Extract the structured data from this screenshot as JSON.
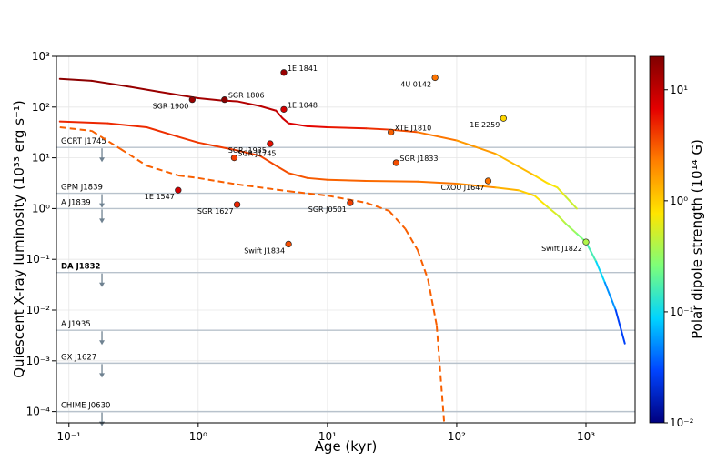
{
  "chart_data": {
    "type": "scatter",
    "xlabel": "Age (kyr)",
    "ylabel": "Quiescent X-ray luminosity (10³³ erg s⁻¹)",
    "x_scale": "log",
    "y_scale": "log",
    "xlim": [
      0.08,
      2400
    ],
    "ylim": [
      6e-05,
      1000
    ],
    "grid": true,
    "x_ticks": [
      {
        "value": 0.1,
        "label": "10⁻¹"
      },
      {
        "value": 1,
        "label": "10⁰"
      },
      {
        "value": 10,
        "label": "10¹"
      },
      {
        "value": 100,
        "label": "10²"
      },
      {
        "value": 1000,
        "label": "10³"
      }
    ],
    "y_ticks": [
      {
        "value": 0.0001,
        "label": "10⁻⁴"
      },
      {
        "value": 0.001,
        "label": "10⁻³"
      },
      {
        "value": 0.01,
        "label": "10⁻²"
      },
      {
        "value": 0.1,
        "label": "10⁻¹"
      },
      {
        "value": 1,
        "label": "10⁰"
      },
      {
        "value": 10,
        "label": "10¹"
      },
      {
        "value": 100,
        "label": "10²"
      },
      {
        "value": 1000,
        "label": "10³"
      }
    ],
    "colorbar": {
      "label": "Polar dipole strength (10¹⁴ G)",
      "scale": "log",
      "range": [
        0.01,
        20
      ],
      "ticks": [
        {
          "value": 10,
          "label": "10¹"
        },
        {
          "value": 1,
          "label": "10⁰"
        },
        {
          "value": 0.1,
          "label": "10⁻¹"
        },
        {
          "value": 0.01,
          "label": "10⁻²"
        }
      ],
      "stops": [
        "#00007f",
        "#0044ff",
        "#00d4ff",
        "#7dff7a",
        "#ffe500",
        "#ff7f00",
        "#e40000",
        "#800000"
      ]
    },
    "upper_limits": [
      {
        "name": "GCRT J1745",
        "y": 16,
        "bold": false
      },
      {
        "name": "GPM J1839",
        "y": 2,
        "bold": false
      },
      {
        "name": "A J1839",
        "y": 1,
        "bold": false
      },
      {
        "name": "DA J1832",
        "y": 0.055,
        "bold": true
      },
      {
        "name": "A J1935",
        "y": 0.004,
        "bold": false
      },
      {
        "name": "GX J1627",
        "y": 0.0009,
        "bold": false
      },
      {
        "name": "CHIME J0630",
        "y": 0.0001,
        "bold": false
      }
    ],
    "upper_limit_age": 0.18,
    "tracks": [
      {
        "dash": false,
        "points": [
          [
            0.085,
            360
          ],
          [
            0.15,
            330
          ],
          [
            0.3,
            250
          ],
          [
            0.5,
            200
          ],
          [
            1,
            150
          ],
          [
            1.5,
            135
          ],
          [
            2,
            130
          ],
          [
            3,
            105
          ],
          [
            4,
            85
          ],
          [
            4.5,
            60
          ],
          [
            5,
            48
          ],
          [
            7,
            42
          ],
          [
            10,
            40
          ],
          [
            20,
            38
          ],
          [
            30,
            36
          ],
          [
            50,
            32
          ],
          [
            100,
            22
          ],
          [
            200,
            12
          ],
          [
            400,
            4.5
          ],
          [
            500,
            3.2
          ],
          [
            600,
            2.6
          ],
          [
            700,
            1.7
          ],
          [
            850,
            1.0
          ]
        ],
        "fields": [
          18,
          17,
          16,
          15,
          14,
          13,
          12,
          11,
          10,
          9,
          8,
          7,
          6,
          5,
          4,
          3,
          2,
          1.5,
          1,
          0.8,
          0.7,
          0.55,
          0.45
        ]
      },
      {
        "dash": false,
        "points": [
          [
            0.085,
            52
          ],
          [
            0.2,
            48
          ],
          [
            0.4,
            40
          ],
          [
            0.7,
            26
          ],
          [
            1,
            20
          ],
          [
            2,
            14
          ],
          [
            3,
            11
          ],
          [
            4,
            7
          ],
          [
            5,
            5
          ],
          [
            7,
            4
          ],
          [
            10,
            3.7
          ],
          [
            20,
            3.5
          ],
          [
            50,
            3.4
          ],
          [
            100,
            3.1
          ],
          [
            200,
            2.6
          ],
          [
            300,
            2.3
          ],
          [
            400,
            1.8
          ],
          [
            500,
            1.1
          ],
          [
            600,
            0.75
          ],
          [
            700,
            0.5
          ],
          [
            850,
            0.32
          ],
          [
            1000,
            0.22
          ],
          [
            1200,
            0.09
          ],
          [
            1400,
            0.035
          ],
          [
            1700,
            0.01
          ],
          [
            2000,
            0.0022
          ]
        ],
        "fields": [
          5,
          4.8,
          4.6,
          4.4,
          4.2,
          4,
          3.8,
          3.6,
          3.4,
          3.2,
          3,
          2.8,
          2.6,
          2.4,
          1.6,
          1.1,
          0.9,
          0.65,
          0.5,
          0.4,
          0.3,
          0.22,
          0.12,
          0.07,
          0.04,
          0.02
        ]
      },
      {
        "dash": true,
        "points": [
          [
            0.085,
            40
          ],
          [
            0.15,
            34
          ],
          [
            0.25,
            15
          ],
          [
            0.4,
            7
          ],
          [
            0.7,
            4.5
          ],
          [
            1,
            4
          ],
          [
            2,
            3
          ],
          [
            5,
            2.2
          ],
          [
            10,
            1.8
          ],
          [
            20,
            1.3
          ],
          [
            30,
            0.9
          ],
          [
            40,
            0.4
          ],
          [
            50,
            0.15
          ],
          [
            60,
            0.04
          ],
          [
            70,
            0.005
          ],
          [
            80,
            6e-05
          ]
        ],
        "fields": [
          3,
          3,
          3,
          3,
          3,
          3,
          3,
          3,
          3,
          3,
          3,
          3,
          3,
          3,
          3,
          3
        ]
      }
    ],
    "sources": [
      {
        "name": "1E 1841",
        "age": 4.6,
        "lum": 480,
        "field": 15,
        "label_side": "right"
      },
      {
        "name": "4U 0142",
        "age": 68,
        "lum": 380,
        "field": 2.5,
        "label_side": "left"
      },
      {
        "name": "SGR 1806",
        "age": 1.6,
        "lum": 140,
        "field": 18,
        "label_side": "right"
      },
      {
        "name": "SGR 1900",
        "age": 0.9,
        "lum": 140,
        "field": 15,
        "label_side": "left"
      },
      {
        "name": "1E 1048",
        "age": 4.6,
        "lum": 90,
        "field": 8,
        "label_side": "right"
      },
      {
        "name": "1E 2259",
        "age": 230,
        "lum": 60,
        "field": 0.9,
        "label_side": "left"
      },
      {
        "name": "XTE J1810",
        "age": 31,
        "lum": 32,
        "field": 3,
        "label_side": "right"
      },
      {
        "name": "SGR J1935",
        "age": 3.6,
        "lum": 19,
        "field": 6,
        "label_side": "left"
      },
      {
        "name": "SGR J1745",
        "age": 1.9,
        "lum": 10,
        "field": 4,
        "label_side": "right"
      },
      {
        "name": "SGR J1833",
        "age": 34,
        "lum": 8,
        "field": 3.5,
        "label_side": "right"
      },
      {
        "name": "CXOU J1647",
        "age": 175,
        "lum": 3.5,
        "field": 2.5,
        "label_side": "left"
      },
      {
        "name": "1E 1547",
        "age": 0.7,
        "lum": 2.3,
        "field": 8,
        "label_side": "left"
      },
      {
        "name": "SGR 1627",
        "age": 2,
        "lum": 1.2,
        "field": 5,
        "label_side": "left"
      },
      {
        "name": "SGR J0501",
        "age": 15,
        "lum": 1.3,
        "field": 4,
        "label_side": "left"
      },
      {
        "name": "Swift J1834",
        "age": 5,
        "lum": 0.2,
        "field": 3.5,
        "label_side": "left"
      },
      {
        "name": "Swift J1822",
        "age": 1000,
        "lum": 0.22,
        "field": 0.4,
        "label_side": "left"
      }
    ]
  }
}
